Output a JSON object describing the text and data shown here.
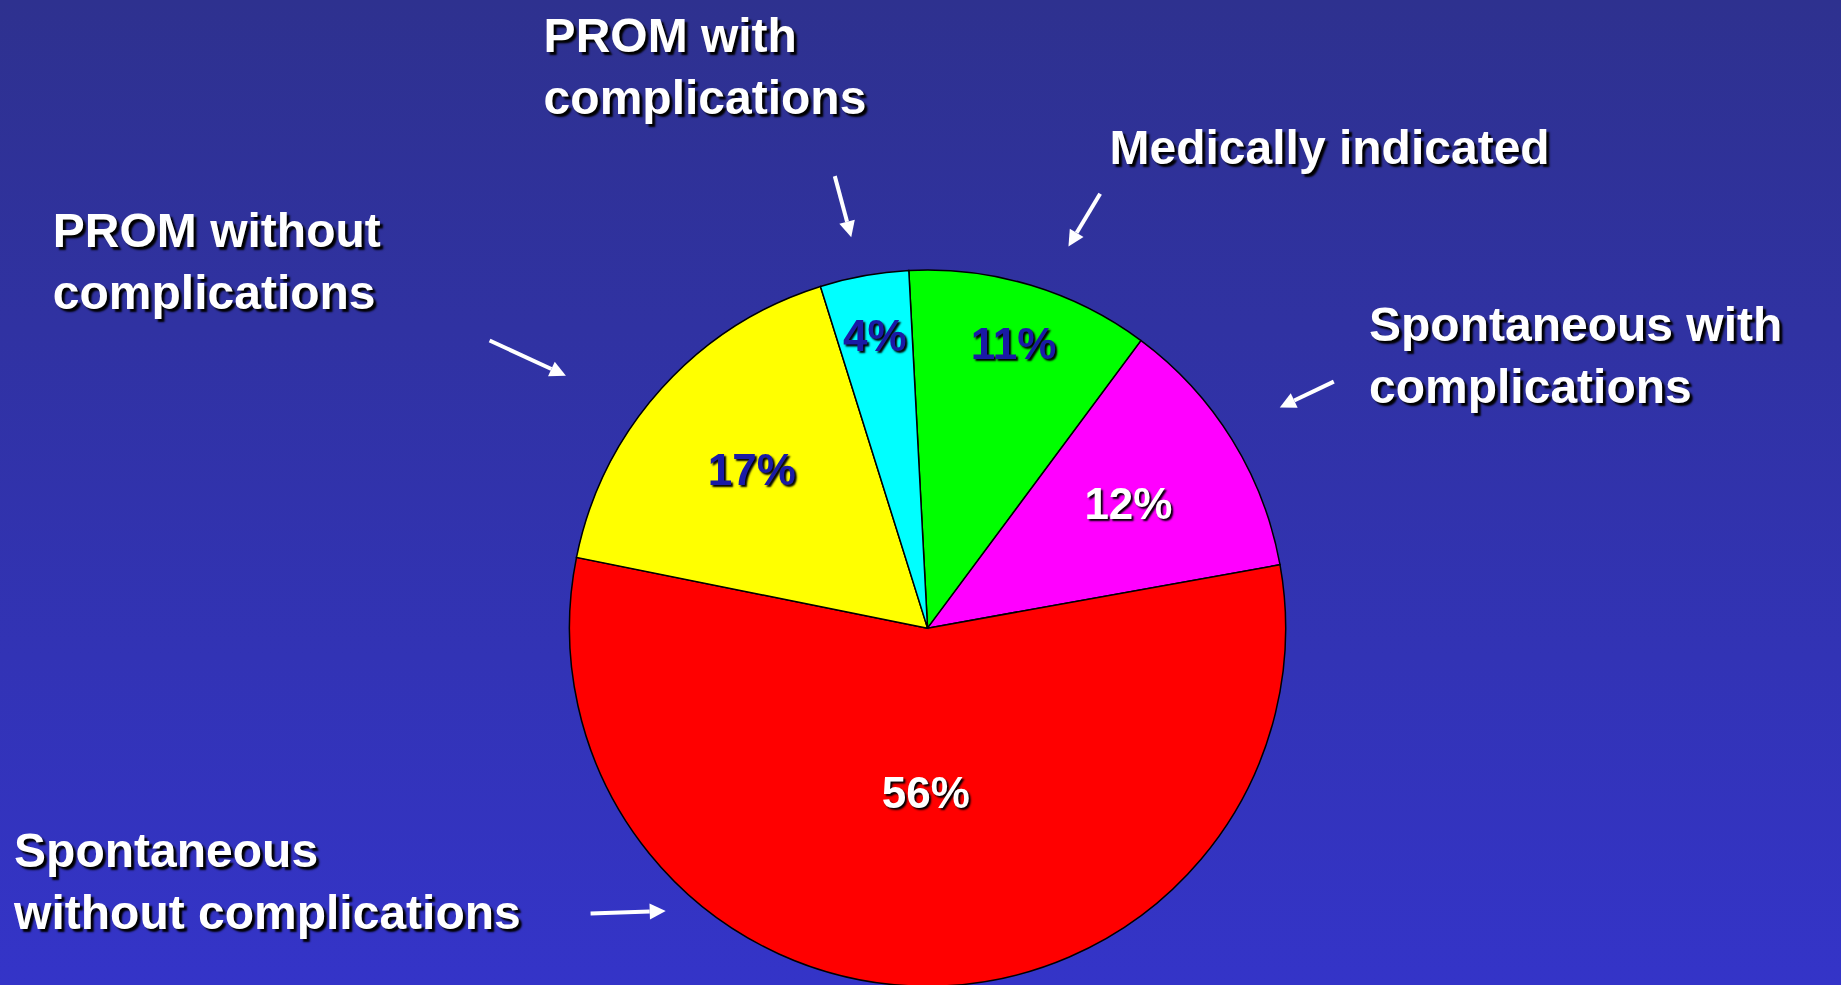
{
  "chart_data": {
    "type": "pie",
    "categories": [
      "Medically indicated",
      "Spontaneous with\ncomplications",
      "Spontaneous\nwithout complications",
      "PROM without\ncomplications",
      "PROM with\ncomplications"
    ],
    "values": [
      11,
      12,
      56,
      17,
      4
    ],
    "value_labels": [
      "11%",
      "12%",
      "56%",
      "17%",
      "4%"
    ],
    "colors": [
      "#00ff00",
      "#ff00ff",
      "#ff0000",
      "#ffff00",
      "#00ffff"
    ]
  }
}
